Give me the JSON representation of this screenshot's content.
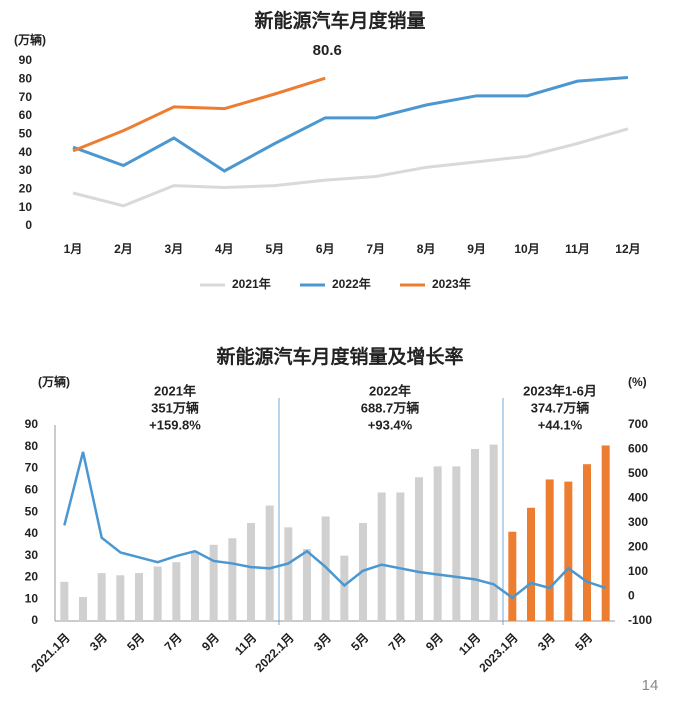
{
  "chart_data": [
    {
      "type": "line",
      "title": "新能源汽车月度销量",
      "y_label": "(万辆)",
      "categories": [
        "1月",
        "2月",
        "3月",
        "4月",
        "5月",
        "6月",
        "7月",
        "8月",
        "9月",
        "10月",
        "11月",
        "12月"
      ],
      "series": [
        {
          "name": "2021年",
          "color": "#d9d9d9",
          "values": [
            18,
            11,
            22,
            21,
            22,
            25,
            27,
            32,
            35,
            38,
            45,
            53
          ]
        },
        {
          "name": "2022年",
          "color": "#4b97d1",
          "values": [
            43,
            33,
            48,
            30,
            45,
            59,
            59,
            66,
            71,
            71,
            79,
            81
          ]
        },
        {
          "name": "2023年",
          "color": "#ed7d31",
          "values": [
            41,
            52,
            65,
            64,
            72,
            80.6,
            null,
            null,
            null,
            null,
            null,
            null
          ]
        }
      ],
      "data_label": {
        "series": 2,
        "index": 5
      },
      "ylim": [
        0,
        90
      ],
      "yticks": [
        0,
        10,
        20,
        30,
        40,
        50,
        60,
        70,
        80,
        90
      ],
      "legend": "bottom",
      "grid": false
    },
    {
      "type": "bar_line",
      "title": "新能源汽车月度销量及增长率",
      "y_label": "(万辆)",
      "y2_label": "(%)",
      "categories": [
        "2021.1月",
        null,
        "3月",
        null,
        "5月",
        null,
        "7月",
        null,
        "9月",
        null,
        "11月",
        null,
        "2022.1月",
        null,
        "3月",
        null,
        "5月",
        null,
        "7月",
        null,
        "9月",
        null,
        "11月",
        null,
        "2023.1月",
        null,
        "3月",
        null,
        "5月",
        null
      ],
      "series": [
        {
          "type": "bar",
          "color": "#d0d0d0",
          "values": [
            18,
            11,
            22,
            21,
            22,
            25,
            27,
            32,
            35,
            38,
            45,
            53,
            43,
            33,
            48,
            30,
            45,
            59,
            59,
            66,
            71,
            71,
            79,
            81,
            null,
            null,
            null,
            null,
            null,
            null
          ]
        },
        {
          "type": "bar",
          "color": "#ed7d31",
          "values": [
            null,
            null,
            null,
            null,
            null,
            null,
            null,
            null,
            null,
            null,
            null,
            null,
            null,
            null,
            null,
            null,
            null,
            null,
            null,
            null,
            null,
            null,
            null,
            null,
            41,
            52,
            65,
            64,
            72,
            80.6
          ]
        },
        {
          "type": "line",
          "axis": "y2",
          "color": "#4b97d1",
          "values": [
            290,
            590,
            240,
            180,
            160,
            140,
            165,
            185,
            145,
            135,
            120,
            115,
            135,
            185,
            120,
            45,
            105,
            130,
            115,
            100,
            90,
            80,
            70,
            50,
            -5,
            55,
            35,
            115,
            60,
            35
          ]
        }
      ],
      "annotations": [
        [
          "2021年",
          "351万辆",
          "+159.8%"
        ],
        [
          "2022年",
          "688.7万辆",
          "+93.4%"
        ],
        [
          "2023年1-6月",
          "374.7万辆",
          "+44.1%"
        ]
      ],
      "ylim": [
        0,
        90
      ],
      "yticks": [
        0,
        10,
        20,
        30,
        40,
        50,
        60,
        70,
        80,
        90
      ],
      "y2lim": [
        -100,
        700
      ],
      "y2ticks": [
        -100,
        0,
        100,
        200,
        300,
        400,
        500,
        600,
        700
      ],
      "grid": false
    },
    {
      "type": "page_number",
      "text": "14"
    }
  ]
}
